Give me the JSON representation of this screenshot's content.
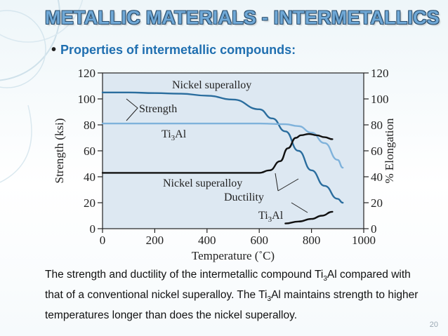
{
  "slide": {
    "title": "METALLIC MATERIALS - INTERMETALLICS",
    "bullet": "Properties of intermetallic compounds:",
    "caption_parts": [
      "The strength and ductility of the intermetallic compound Ti",
      "3",
      "Al compared with that of a conventional nickel superalloy. The Ti",
      "3",
      "Al maintains strength to higher temperatures longer than does the nickel superalloy."
    ],
    "page_number": "20"
  },
  "chart_data": {
    "type": "line",
    "xlabel": "Temperature (˚C)",
    "ylabel_left": "Strength (ksi)",
    "ylabel_right": "% Elongation",
    "xlim": [
      0,
      1000
    ],
    "ylim_left": [
      0,
      120
    ],
    "ylim_right": [
      0,
      120
    ],
    "xticks": [
      "0",
      "200",
      "400",
      "600",
      "800",
      "1000"
    ],
    "yticks_left": [
      "0",
      "20",
      "40",
      "60",
      "80",
      "100",
      "120"
    ],
    "yticks_right": [
      "0",
      "20",
      "40",
      "60",
      "80",
      "100",
      "120"
    ],
    "annotations": {
      "nickel_top": "Nickel superalloy",
      "strength": "Strength",
      "ti3al_mid": "Ti3Al",
      "nickel_bottom": "Nickel superalloy",
      "ductility": "Ductility",
      "ti3al_bottom": "Ti3Al"
    },
    "series": [
      {
        "name": "Nickel superalloy strength",
        "axis": "left",
        "color": "#2a6d9e",
        "x": [
          0,
          100,
          200,
          300,
          400,
          500,
          600,
          650,
          700,
          750,
          800,
          850,
          900,
          920
        ],
        "y": [
          105,
          105,
          104.5,
          104,
          102.5,
          99.5,
          92,
          85,
          75,
          60,
          45,
          33,
          23,
          20
        ]
      },
      {
        "name": "Ti3Al strength",
        "axis": "left",
        "color": "#7fb2db",
        "x": [
          0,
          100,
          200,
          300,
          400,
          500,
          600,
          700,
          750,
          800,
          850,
          900,
          920
        ],
        "y": [
          81,
          81,
          81,
          81,
          81,
          81,
          81,
          80.5,
          79,
          74,
          66,
          53,
          47
        ]
      },
      {
        "name": "Nickel superalloy ductility",
        "axis": "right",
        "color": "#111111",
        "x": [
          0,
          100,
          200,
          300,
          400,
          500,
          600,
          640,
          680,
          710,
          740,
          760,
          790,
          820,
          850,
          880
        ],
        "y": [
          43,
          43,
          43,
          43,
          43,
          43,
          43,
          45,
          52,
          62,
          70,
          72,
          73,
          72,
          70.5,
          69
        ]
      },
      {
        "name": "Ti3Al ductility",
        "axis": "right",
        "color": "#111111",
        "x": [
          700,
          750,
          800,
          840,
          880
        ],
        "y": [
          4,
          5.5,
          7.5,
          10,
          13
        ]
      }
    ]
  }
}
